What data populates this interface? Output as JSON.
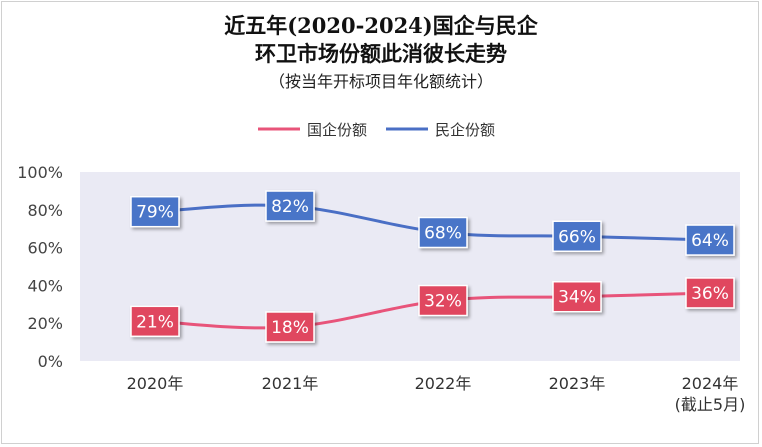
{
  "title_line1": "近五年(2020-2024)国企与民企",
  "title_line2": "环卫市场份额此消彼长走势",
  "subtitle": "（按当年开标项目年化额统计）",
  "colors": {
    "state": "#e8547a",
    "state_label_bg": "#e0465e",
    "private": "#4a6fc5",
    "private_label_bg": "#4a74c8",
    "plot_bg": "#eaeaf4"
  },
  "chart_data": {
    "type": "line",
    "categories": [
      "2020年",
      "2021年",
      "2022年",
      "2023年",
      "2024年"
    ],
    "category_sublabels": [
      "",
      "",
      "",
      "",
      "(截止5月)"
    ],
    "series": [
      {
        "name": "国企份额",
        "values": [
          21,
          18,
          32,
          34,
          36
        ],
        "labels": [
          "21%",
          "18%",
          "32%",
          "34%",
          "36%"
        ]
      },
      {
        "name": "民企份额",
        "values": [
          79,
          82,
          68,
          66,
          64
        ],
        "labels": [
          "79%",
          "82%",
          "68%",
          "66%",
          "64%"
        ]
      }
    ],
    "ylim": [
      0,
      100
    ],
    "yticks": [
      "0%",
      "20%",
      "40%",
      "60%",
      "80%",
      "100%"
    ],
    "grid": false,
    "legend_position": "top-center"
  }
}
